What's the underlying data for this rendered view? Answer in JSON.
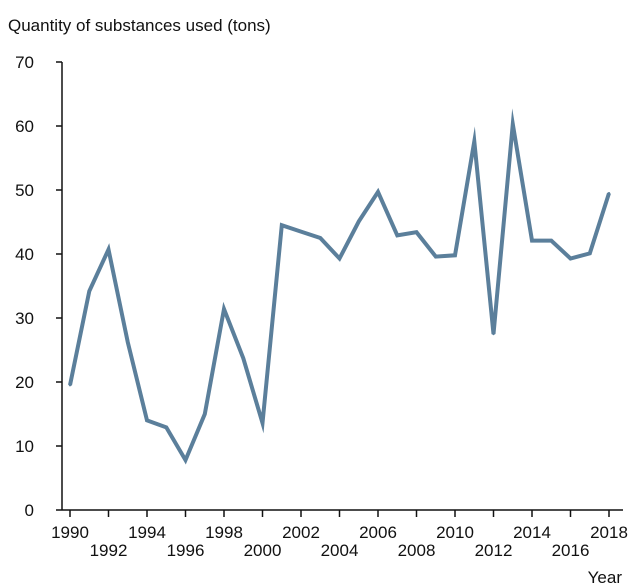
{
  "chart_data": {
    "type": "line",
    "title": "",
    "ylabel": "Quantity of substances used (tons)",
    "xlabel": "Year",
    "ylim": [
      0,
      70
    ],
    "y_ticks": [
      "0",
      "10",
      "20",
      "30",
      "40",
      "50",
      "60",
      "70"
    ],
    "x_tick_labels": [
      "1990",
      "1992",
      "1994",
      "1996",
      "1998",
      "2000",
      "2002",
      "2004",
      "2006",
      "2008",
      "2010",
      "2012",
      "2014",
      "2016",
      "2018"
    ],
    "x_tick_years": [
      1990,
      1992,
      1994,
      1996,
      1998,
      2000,
      2002,
      2004,
      2006,
      2008,
      2010,
      2012,
      2014,
      2016,
      2018
    ],
    "grid": false,
    "line_color": "#5b7f9b",
    "x": [
      1990,
      1991,
      1992,
      1993,
      1994,
      1995,
      1996,
      1997,
      1998,
      1999,
      2000,
      2001,
      2002,
      2003,
      2004,
      2005,
      2006,
      2007,
      2008,
      2009,
      2010,
      2011,
      2012,
      2013,
      2014,
      2015,
      2016,
      2017,
      2018
    ],
    "series": [
      {
        "values": [
          19.5,
          34.2,
          40.7,
          26.2,
          14.0,
          12.9,
          7.8,
          15.0,
          31.4,
          23.7,
          13.6,
          44.5,
          43.5,
          42.5,
          39.3,
          45.1,
          49.7,
          42.9,
          43.4,
          39.6,
          39.8,
          57.6,
          27.5,
          60.3,
          42.1,
          42.1,
          39.3,
          40.1,
          49.5
        ]
      }
    ]
  }
}
